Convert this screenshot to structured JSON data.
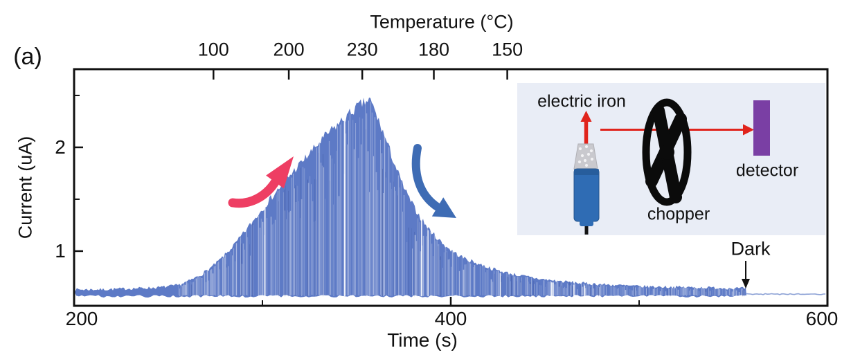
{
  "figure": {
    "panel_label": "(a)"
  },
  "colors": {
    "background": "#ffffff",
    "frame": "#111111",
    "signal": "#5d7ac6",
    "signal_dark_strand": "#283c82",
    "dark_tail": "#8ea3d6",
    "rise_arrow": "#ee3e63",
    "fall_arrow": "#3e6cb4",
    "annotation": "#111111",
    "inset_background": "#e9edf6",
    "detector_fill": "#7a3fa4",
    "iron_handle": "#2f6cb4",
    "iron_handle_dark": "#275d9c",
    "iron_tip": "#c9c9ce",
    "beam_red": "#e0241c",
    "chopper_black": "#0b0b0b"
  },
  "chart_data": {
    "type": "area",
    "title": "",
    "xlabel": "Time (s)",
    "ylabel": "Current (uA)",
    "top_axis_label": "Temperature (°C)",
    "xlim": [
      200,
      600
    ],
    "ylim": [
      0.473,
      2.753
    ],
    "grid": false,
    "x_ticks": [
      {
        "label": "200",
        "value": 200
      },
      {
        "label": "400",
        "value": 400
      },
      {
        "label": "600",
        "value": 600
      }
    ],
    "x_minor_ticks": [
      300,
      500
    ],
    "y_ticks": [
      {
        "label": "1",
        "value": 1
      },
      {
        "label": "2",
        "value": 2
      }
    ],
    "y_minor_ticks": [
      1.5,
      2.5
    ],
    "top_ticks": [
      {
        "label": "100",
        "time": 274
      },
      {
        "label": "200",
        "time": 314
      },
      {
        "label": "230",
        "time": 353
      },
      {
        "label": "180",
        "time": 391
      },
      {
        "label": "150",
        "time": 430
      }
    ],
    "series": [
      {
        "name": "chopped photocurrent upper envelope",
        "x": [
          200,
          215,
          230,
          245,
          255,
          262,
          268,
          274,
          280,
          286,
          292,
          298,
          304,
          310,
          316,
          322,
          328,
          334,
          340,
          346,
          351,
          355,
          357,
          359,
          362,
          365,
          368,
          371,
          374,
          377,
          380,
          384,
          388,
          392,
          396,
          400,
          405,
          410,
          416,
          422,
          430,
          438,
          448,
          458,
          470,
          485,
          500,
          515,
          530,
          545,
          556
        ],
        "y": [
          0.63,
          0.63,
          0.64,
          0.65,
          0.67,
          0.72,
          0.78,
          0.86,
          0.96,
          1.08,
          1.22,
          1.36,
          1.5,
          1.63,
          1.76,
          1.88,
          2.0,
          2.12,
          2.22,
          2.32,
          2.4,
          2.44,
          2.46,
          2.38,
          2.24,
          2.1,
          1.95,
          1.8,
          1.66,
          1.54,
          1.44,
          1.32,
          1.22,
          1.14,
          1.07,
          1.01,
          0.95,
          0.91,
          0.87,
          0.83,
          0.79,
          0.76,
          0.73,
          0.71,
          0.69,
          0.675,
          0.66,
          0.655,
          0.65,
          0.645,
          0.64
        ]
      }
    ],
    "baseline_level": 0.565,
    "peak": {
      "time": 357,
      "current": 2.46
    },
    "dark_transition_time": 557,
    "dark_level": 0.585,
    "annotations": {
      "dark_label": "Dark"
    }
  },
  "inset": {
    "labels": {
      "electric_iron": "electric iron",
      "chopper": "chopper",
      "detector": "detector"
    }
  }
}
